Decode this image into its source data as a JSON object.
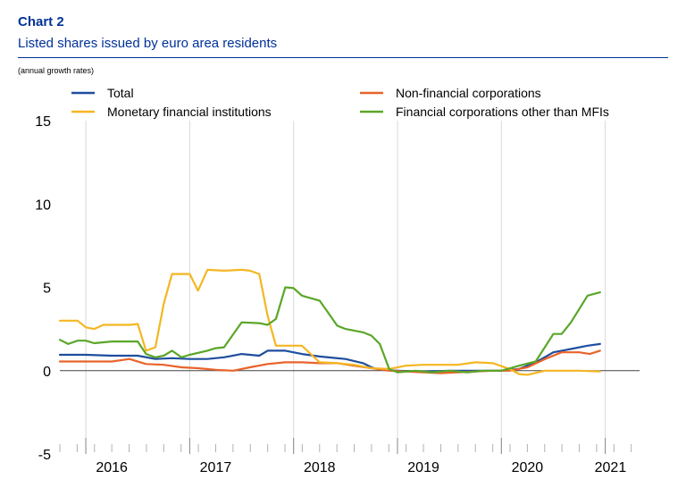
{
  "header": {
    "chart_number": "Chart 2",
    "title": "Listed shares issued by euro area residents",
    "subtitle": "(annual growth rates)"
  },
  "colors": {
    "total": "#1f4e9e",
    "nfc": "#e8632b",
    "mfi": "#f4b622",
    "ofc": "#5aa628",
    "grid": "#d9d9d9",
    "zero": "#444444"
  },
  "chart_data": {
    "type": "line",
    "ylim": [
      -5,
      15
    ],
    "yticks": [
      -5,
      0,
      5,
      10,
      15
    ],
    "xlim": [
      2015.75,
      2021.33
    ],
    "year_labels": [
      {
        "label": "2016",
        "x": 2016.25
      },
      {
        "label": "2017",
        "x": 2017.25
      },
      {
        "label": "2018",
        "x": 2018.25
      },
      {
        "label": "2019",
        "x": 2019.25
      },
      {
        "label": "2020",
        "x": 2020.25
      },
      {
        "label": "2021",
        "x": 2021.05
      }
    ],
    "year_boundaries": [
      2016.0,
      2017.0,
      2018.0,
      2019.0,
      2020.0,
      2021.0
    ],
    "legend": [
      {
        "key": "total",
        "label": "Total"
      },
      {
        "key": "mfi",
        "label": "Monetary financial institutions"
      },
      {
        "key": "nfc",
        "label": "Non-financial corporations"
      },
      {
        "key": "ofc",
        "label": "Financial corporations other than MFIs"
      }
    ],
    "series": [
      {
        "key": "total",
        "name": "Total",
        "points": [
          [
            2015.75,
            0.95
          ],
          [
            2016.0,
            0.95
          ],
          [
            2016.25,
            0.9
          ],
          [
            2016.5,
            0.9
          ],
          [
            2016.67,
            0.7
          ],
          [
            2016.83,
            0.75
          ],
          [
            2017.0,
            0.7
          ],
          [
            2017.17,
            0.7
          ],
          [
            2017.33,
            0.8
          ],
          [
            2017.5,
            1.0
          ],
          [
            2017.67,
            0.9
          ],
          [
            2017.75,
            1.2
          ],
          [
            2017.92,
            1.2
          ],
          [
            2018.08,
            1.0
          ],
          [
            2018.25,
            0.85
          ],
          [
            2018.5,
            0.7
          ],
          [
            2018.67,
            0.45
          ],
          [
            2018.75,
            0.2
          ],
          [
            2018.83,
            0.05
          ],
          [
            2019.0,
            0.0
          ],
          [
            2019.25,
            -0.05
          ],
          [
            2019.5,
            0.0
          ],
          [
            2019.75,
            0.0
          ],
          [
            2020.0,
            0.0
          ],
          [
            2020.17,
            0.1
          ],
          [
            2020.33,
            0.5
          ],
          [
            2020.5,
            1.1
          ],
          [
            2020.67,
            1.3
          ],
          [
            2020.83,
            1.5
          ],
          [
            2020.95,
            1.6
          ]
        ]
      },
      {
        "key": "nfc",
        "name": "Non-financial corporations",
        "points": [
          [
            2015.75,
            0.55
          ],
          [
            2016.0,
            0.55
          ],
          [
            2016.25,
            0.55
          ],
          [
            2016.42,
            0.7
          ],
          [
            2016.58,
            0.4
          ],
          [
            2016.75,
            0.35
          ],
          [
            2016.92,
            0.2
          ],
          [
            2017.08,
            0.15
          ],
          [
            2017.25,
            0.05
          ],
          [
            2017.42,
            0.0
          ],
          [
            2017.58,
            0.2
          ],
          [
            2017.75,
            0.4
          ],
          [
            2017.92,
            0.5
          ],
          [
            2018.08,
            0.5
          ],
          [
            2018.25,
            0.45
          ],
          [
            2018.42,
            0.45
          ],
          [
            2018.58,
            0.3
          ],
          [
            2018.75,
            0.15
          ],
          [
            2018.92,
            0.0
          ],
          [
            2019.08,
            -0.05
          ],
          [
            2019.25,
            -0.1
          ],
          [
            2019.42,
            -0.15
          ],
          [
            2019.58,
            -0.1
          ],
          [
            2019.75,
            -0.05
          ],
          [
            2019.92,
            0.0
          ],
          [
            2020.08,
            0.0
          ],
          [
            2020.25,
            0.2
          ],
          [
            2020.42,
            0.7
          ],
          [
            2020.58,
            1.1
          ],
          [
            2020.75,
            1.1
          ],
          [
            2020.85,
            1.0
          ],
          [
            2020.95,
            1.2
          ]
        ]
      },
      {
        "key": "mfi",
        "name": "Monetary financial institutions",
        "points": [
          [
            2015.75,
            3.0
          ],
          [
            2015.92,
            3.0
          ],
          [
            2016.0,
            2.6
          ],
          [
            2016.08,
            2.5
          ],
          [
            2016.17,
            2.75
          ],
          [
            2016.42,
            2.75
          ],
          [
            2016.5,
            2.8
          ],
          [
            2016.58,
            1.2
          ],
          [
            2016.67,
            1.4
          ],
          [
            2016.75,
            4.0
          ],
          [
            2016.83,
            5.8
          ],
          [
            2016.92,
            5.8
          ],
          [
            2017.0,
            5.8
          ],
          [
            2017.08,
            4.8
          ],
          [
            2017.17,
            6.05
          ],
          [
            2017.33,
            6.0
          ],
          [
            2017.5,
            6.05
          ],
          [
            2017.58,
            6.0
          ],
          [
            2017.67,
            5.8
          ],
          [
            2017.75,
            3.3
          ],
          [
            2017.83,
            1.5
          ],
          [
            2017.92,
            1.5
          ],
          [
            2018.08,
            1.5
          ],
          [
            2018.25,
            0.5
          ],
          [
            2018.42,
            0.45
          ],
          [
            2018.58,
            0.35
          ],
          [
            2018.75,
            0.15
          ],
          [
            2018.92,
            0.1
          ],
          [
            2019.08,
            0.3
          ],
          [
            2019.25,
            0.35
          ],
          [
            2019.42,
            0.35
          ],
          [
            2019.58,
            0.35
          ],
          [
            2019.75,
            0.5
          ],
          [
            2019.92,
            0.45
          ],
          [
            2020.08,
            0.1
          ],
          [
            2020.17,
            -0.2
          ],
          [
            2020.25,
            -0.25
          ],
          [
            2020.42,
            0.0
          ],
          [
            2020.58,
            0.0
          ],
          [
            2020.75,
            0.0
          ],
          [
            2020.95,
            -0.05
          ]
        ]
      },
      {
        "key": "ofc",
        "name": "Financial corporations other than MFIs",
        "points": [
          [
            2015.75,
            1.85
          ],
          [
            2015.83,
            1.6
          ],
          [
            2015.92,
            1.8
          ],
          [
            2016.0,
            1.8
          ],
          [
            2016.08,
            1.65
          ],
          [
            2016.25,
            1.75
          ],
          [
            2016.5,
            1.75
          ],
          [
            2016.58,
            1.0
          ],
          [
            2016.67,
            0.8
          ],
          [
            2016.75,
            0.9
          ],
          [
            2016.83,
            1.2
          ],
          [
            2016.92,
            0.8
          ],
          [
            2017.0,
            0.95
          ],
          [
            2017.17,
            1.2
          ],
          [
            2017.25,
            1.35
          ],
          [
            2017.33,
            1.4
          ],
          [
            2017.5,
            2.9
          ],
          [
            2017.67,
            2.85
          ],
          [
            2017.75,
            2.75
          ],
          [
            2017.83,
            3.1
          ],
          [
            2017.92,
            5.0
          ],
          [
            2018.0,
            4.95
          ],
          [
            2018.08,
            4.5
          ],
          [
            2018.25,
            4.2
          ],
          [
            2018.33,
            3.5
          ],
          [
            2018.42,
            2.7
          ],
          [
            2018.5,
            2.5
          ],
          [
            2018.67,
            2.3
          ],
          [
            2018.75,
            2.1
          ],
          [
            2018.83,
            1.6
          ],
          [
            2018.92,
            0.1
          ],
          [
            2019.0,
            -0.1
          ],
          [
            2019.17,
            0.0
          ],
          [
            2019.33,
            -0.1
          ],
          [
            2019.5,
            0.0
          ],
          [
            2019.67,
            -0.1
          ],
          [
            2019.83,
            0.0
          ],
          [
            2020.0,
            0.0
          ],
          [
            2020.17,
            0.3
          ],
          [
            2020.33,
            0.55
          ],
          [
            2020.5,
            2.2
          ],
          [
            2020.58,
            2.2
          ],
          [
            2020.67,
            2.9
          ],
          [
            2020.83,
            4.5
          ],
          [
            2020.95,
            4.7
          ]
        ]
      }
    ]
  }
}
